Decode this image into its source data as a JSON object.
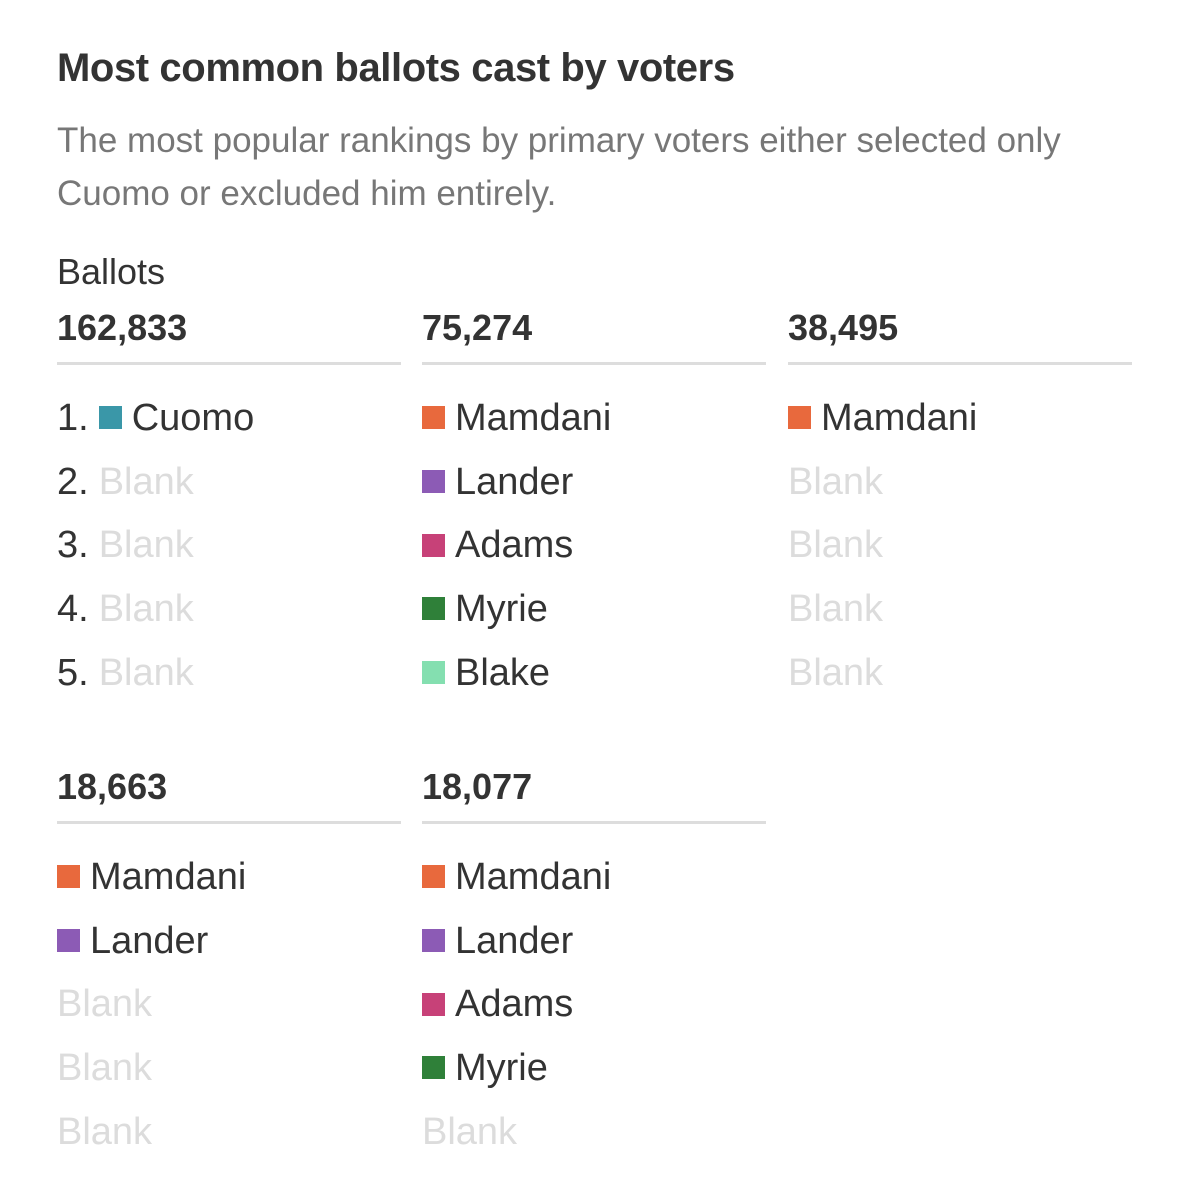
{
  "title": "Most common ballots cast by voters",
  "subtitle": "The most popular rankings by primary voters either selected only Cuomo or excluded him entirely.",
  "colors": {
    "Cuomo": "#3a97a8",
    "Mamdani": "#e8693d",
    "Lander": "#8c5bb5",
    "Adams": "#c74178",
    "Myrie": "#2f8039",
    "Blake": "#84dfb0",
    "Blank": "#dcdcdc"
  },
  "chart_data": {
    "type": "table",
    "title": "Most common ballots cast by voters",
    "subtitle": "The most popular rankings by primary voters either selected only Cuomo or excluded him entirely.",
    "value_label": "Ballots",
    "rank_labels": [
      "1.",
      "2.",
      "3.",
      "4.",
      "5."
    ],
    "blank_label": "Blank",
    "ballots": [
      {
        "count": "162,833",
        "value": 162833,
        "rankings": [
          "Cuomo",
          "Blank",
          "Blank",
          "Blank",
          "Blank"
        ]
      },
      {
        "count": "75,274",
        "value": 75274,
        "rankings": [
          "Mamdani",
          "Lander",
          "Adams",
          "Myrie",
          "Blake"
        ]
      },
      {
        "count": "38,495",
        "value": 38495,
        "rankings": [
          "Mamdani",
          "Blank",
          "Blank",
          "Blank",
          "Blank"
        ]
      },
      {
        "count": "18,663",
        "value": 18663,
        "rankings": [
          "Mamdani",
          "Lander",
          "Blank",
          "Blank",
          "Blank"
        ]
      },
      {
        "count": "18,077",
        "value": 18077,
        "rankings": [
          "Mamdani",
          "Lander",
          "Adams",
          "Myrie",
          "Blank"
        ]
      }
    ]
  }
}
